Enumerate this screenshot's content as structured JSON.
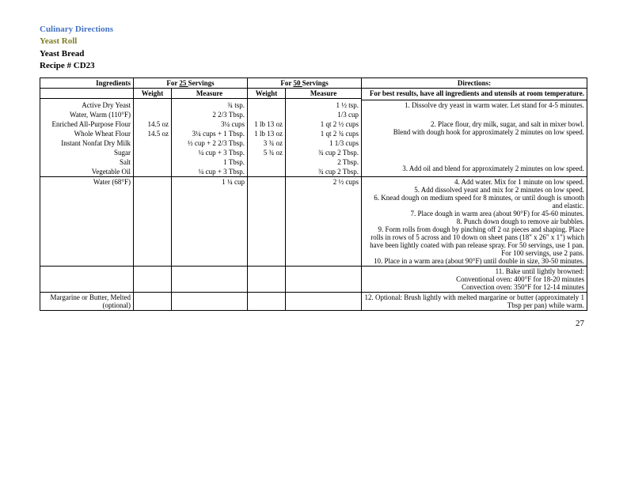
{
  "title": {
    "line1": "Culinary Directions",
    "line2": "Yeast Roll",
    "line3": "Yeast Bread",
    "line4": "Recipe # CD23"
  },
  "header": {
    "ingredients": "Ingredients",
    "for1_a": "For ",
    "for1_qty": "  25  ",
    "for1_b": "Servings",
    "for2_a": "For ",
    "for2_qty": "  50  ",
    "for2_b": "Servings",
    "directions": "Directions:",
    "weight": "Weight",
    "measure": "Measure"
  },
  "r1": {
    "ing": "Active Dry Yeast",
    "m25": "¾ tsp.",
    "m50": "1 ½ tsp.",
    "dir": "For best results, have all ingredients and utensils at room temperature."
  },
  "r2": {
    "ing": "Water, Warm (110°F)",
    "m25": "2 2/3 Tbsp.",
    "m50": "1/3 cup",
    "dir": "1. Dissolve dry yeast in warm water. Let stand for 4-5 minutes."
  },
  "r3": {
    "ing": "Enriched All-Purpose Flour",
    "w25": "14.5 oz",
    "m25": "3¼ cups",
    "w50": "1 lb 13 oz",
    "m50": "1 qt 2 ½ cups",
    "dir": "2. Place flour, dry milk, sugar, and salt in mixer bowl."
  },
  "r4": {
    "ing": "Whole Wheat Flour",
    "w25": "14.5 oz",
    "m25": "3¼ cups + 1 Tbsp.",
    "w50": "1 lb 13 oz",
    "m50": "1 qt 2 ¾ cups",
    "dir": "Blend with dough hook for approximately 2 minutes on low speed."
  },
  "r5": {
    "ing": "Instant Nonfat Dry Milk",
    "m25": "½ cup + 2 2/3 Tbsp.",
    "w50": "3 ¾ oz",
    "m50": "1 1/3 cups"
  },
  "r6": {
    "ing": "Sugar",
    "m25": "¼ cup + 3 Tbsp.",
    "w50": "5 ¾ oz",
    "m50": "¾ cup 2 Tbsp."
  },
  "r7": {
    "ing": "Salt",
    "m25": "1 Tbsp.",
    "m50": "2 Tbsp."
  },
  "r8": {
    "ing": "Vegetable Oil",
    "m25": "¼ cup + 3 Tbsp.",
    "m50": "¾ cup 2 Tbsp.",
    "dir": "3. Add oil and blend for approximately 2 minutes on low speed."
  },
  "r9": {
    "ing": "Water (68°F)",
    "m25": "1 ¼ cup",
    "m50": "2 ½ cups",
    "dir": "4. Add water. Mix for 1 minute on low speed.\n5. Add dissolved yeast and mix for 2 minutes on low speed.\n6. Knead dough on medium speed for 8 minutes, or until dough is smooth and elastic.\n7. Place dough in warm area (about 90°F) for 45-60 minutes.\n8. Punch down dough to remove air bubbles.\n9. Form rolls from dough by pinching off 2 oz pieces and shaping. Place rolls in rows of 5 across and 10 down on sheet pans (18\" x 26\" x 1\") which have been lightly coated with pan release spray. For 50 servings, use 1 pan. For 100 servings, use 2 pans.\n10. Place in a warm area (about 90°F) until double in size, 30-50 minutes."
  },
  "r10": {
    "dir": "11. Bake until lightly browned:\nConventional oven: 400°F for 18-20 minutes\nConvection oven: 350°F for 12-14 minutes"
  },
  "r11": {
    "ing": "Margarine or Butter, Melted (optional)",
    "dir": "12. Optional: Brush lightly with melted margarine or butter (approximately 1 Tbsp per pan) while warm."
  },
  "pagenum": "27"
}
